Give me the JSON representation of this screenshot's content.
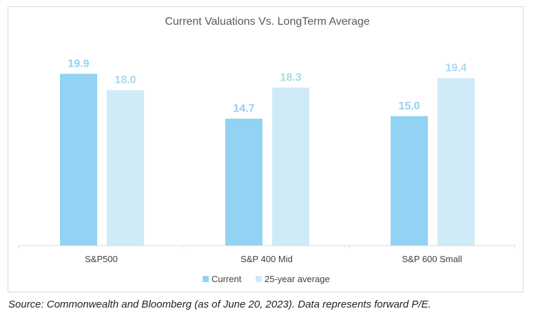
{
  "chart_data": {
    "type": "bar",
    "title": "Current Valuations Vs. LongTerm Average",
    "categories": [
      "S&P500",
      "S&P 400 Mid",
      "S&P 600 Small"
    ],
    "series": [
      {
        "name": "Current",
        "values": [
          19.9,
          14.7,
          15.0
        ],
        "labels": [
          "19.9",
          "14.7",
          "15.0"
        ],
        "color": "#92d2f2",
        "label_color": "#92d2f2"
      },
      {
        "name": "25-year average",
        "values": [
          18.0,
          18.3,
          19.4
        ],
        "labels": [
          "18.0",
          "18.3",
          "19.4"
        ],
        "color": "#d0ebf8",
        "label_color": "#a8d8f0"
      }
    ],
    "ylim": [
      0,
      20
    ],
    "grid": false,
    "legend_position": "bottom"
  },
  "source_note": "Source: Commonwealth and Bloomberg (as of June 20, 2023). Data represents forward P/E.",
  "colors": {
    "axis": "#d9d9d9"
  }
}
